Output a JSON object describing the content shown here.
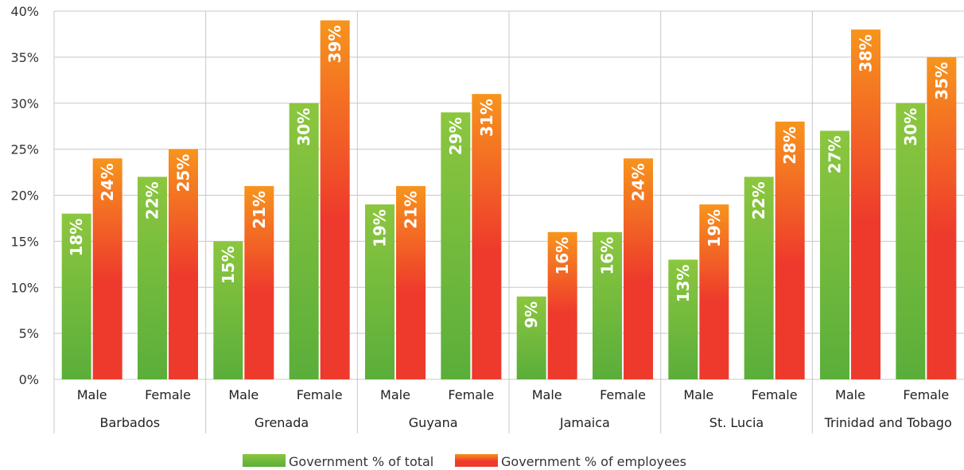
{
  "chart_data": {
    "type": "bar",
    "title": "",
    "xlabel": "",
    "ylabel": "",
    "ylim": [
      0,
      40
    ],
    "yticks": [
      0,
      5,
      10,
      15,
      20,
      25,
      30,
      35,
      40
    ],
    "ytick_suffix": "%",
    "grid": true,
    "legend_position": "bottom",
    "groups": [
      "Barbados",
      "Grenada",
      "Guyana",
      "Jamaica",
      "St. Lucia",
      "Trinidad and Tobago"
    ],
    "subcategories": [
      "Male",
      "Female"
    ],
    "series": [
      {
        "name": "Government % of total",
        "color_top": "#8cc63f",
        "color_bottom": "#5aae3a",
        "values": [
          18,
          22,
          15,
          30,
          19,
          29,
          9,
          16,
          13,
          22,
          27,
          30
        ],
        "labels": [
          "18%",
          "22%",
          "15%",
          "30%",
          "19%",
          "29%",
          "9%",
          "16%",
          "13%",
          "22%",
          "27%",
          "30%"
        ]
      },
      {
        "name": "Government % of employees",
        "color_top": "#f7941d",
        "color_bottom": "#ee3a2c",
        "values": [
          24,
          25,
          21,
          39,
          21,
          31,
          16,
          24,
          19,
          28,
          38,
          35
        ],
        "labels": [
          "24%",
          "25%",
          "21%",
          "39%",
          "21%",
          "31%",
          "16%",
          "24%",
          "19%",
          "28%",
          "38%",
          "35%"
        ]
      }
    ]
  }
}
